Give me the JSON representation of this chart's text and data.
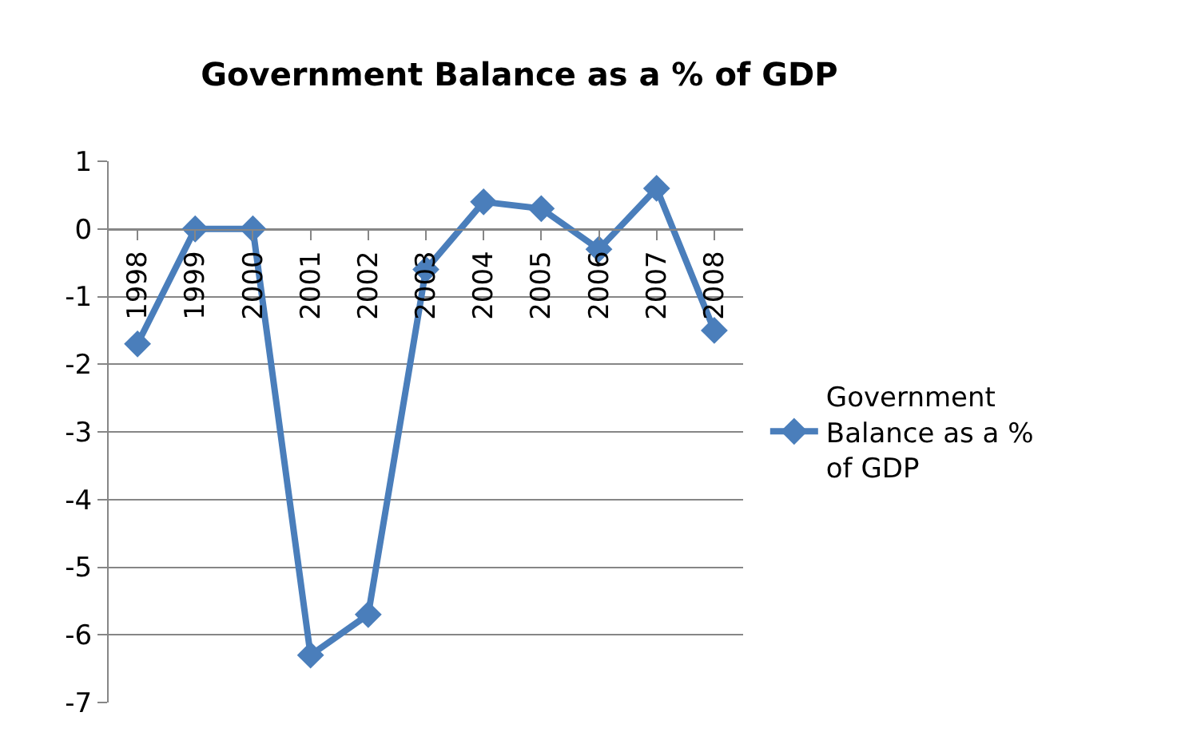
{
  "chart_data": {
    "type": "line",
    "title": "Government Balance as a % of GDP",
    "categories": [
      "1998",
      "1999",
      "2000",
      "2001",
      "2002",
      "2003",
      "2004",
      "2005",
      "2006",
      "2007",
      "2008"
    ],
    "series": [
      {
        "name": "Government Balance as a % of GDP",
        "color": "#4a7ebb",
        "values": [
          -1.7,
          0,
          0,
          -6.3,
          -5.7,
          -0.6,
          0.4,
          0.3,
          -0.3,
          0.6,
          -1.5
        ]
      }
    ],
    "ylim": [
      -7,
      1
    ],
    "yticks": [
      -7,
      -6,
      -5,
      -4,
      -3,
      -2,
      -1,
      0,
      1
    ],
    "grid": "y",
    "legend": "right",
    "marker": "diamond",
    "line_style": "solid"
  }
}
